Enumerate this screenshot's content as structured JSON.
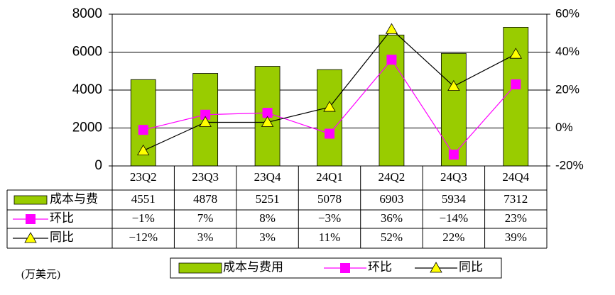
{
  "chart_data": {
    "type": "bar-line-table",
    "categories": [
      "23Q2",
      "23Q3",
      "23Q4",
      "24Q1",
      "24Q2",
      "24Q3",
      "24Q4"
    ],
    "series": [
      {
        "name": "成本与费用",
        "table_label": "成本与费",
        "color": "#99cc00",
        "values": [
          4551,
          4878,
          5251,
          5078,
          6903,
          5934,
          7312
        ]
      },
      {
        "name": "环比",
        "table_label": "环比",
        "color": "#ff00ff",
        "axis": "y2",
        "values": [
          -1,
          7,
          8,
          -3,
          36,
          -14,
          23
        ],
        "value_labels": [
          "−1%",
          "7%",
          "8%",
          "−3%",
          "36%",
          "−14%",
          "23%"
        ]
      },
      {
        "name": "同比",
        "table_label": "同比",
        "color": "#000000",
        "marker_color": "#ffff00",
        "axis": "y2",
        "values": [
          -12,
          3,
          3,
          11,
          52,
          22,
          39
        ],
        "value_labels": [
          "−12%",
          "3%",
          "3%",
          "11%",
          "52%",
          "22%",
          "39%"
        ]
      }
    ],
    "ylim": [
      0,
      8000
    ],
    "yticks": [
      0,
      2000,
      4000,
      6000,
      8000
    ],
    "y2lim": [
      -20,
      60
    ],
    "y2ticks": [
      {
        "value": -20,
        "label": "-20%"
      },
      {
        "value": 0,
        "label": "0%"
      },
      {
        "value": 20,
        "label": "20%"
      },
      {
        "value": 40,
        "label": "40%"
      },
      {
        "value": 60,
        "label": "60%"
      }
    ],
    "grid": true,
    "unit_note": "(万美元)"
  }
}
